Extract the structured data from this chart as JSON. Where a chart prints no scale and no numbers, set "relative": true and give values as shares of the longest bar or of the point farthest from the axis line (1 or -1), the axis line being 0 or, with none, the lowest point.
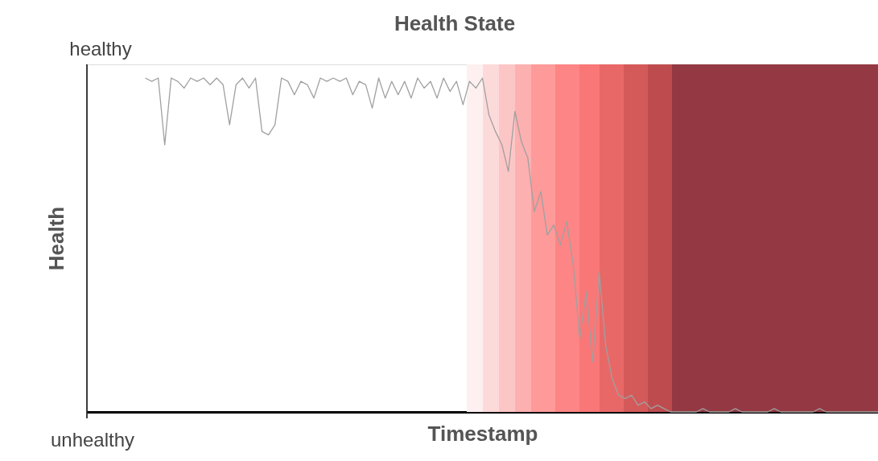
{
  "chart_data": {
    "type": "line",
    "title": "Health State",
    "xlabel": "Timestamp",
    "ylabel": "Health",
    "relative": true,
    "annotations": [
      "healthy",
      "unhealthy"
    ],
    "tick_labels": false,
    "marker": "none",
    "line_style": "solid",
    "categories": [
      null,
      null,
      null,
      null,
      null,
      null,
      null,
      null,
      null,
      null,
      null,
      null,
      null,
      null,
      null,
      null,
      null,
      null,
      null,
      null,
      null,
      null,
      null,
      null,
      null,
      null,
      null,
      null,
      null,
      null,
      null,
      null,
      null,
      null,
      null,
      null,
      null,
      null,
      null,
      null,
      null,
      null,
      null,
      null,
      null,
      null,
      null,
      null,
      null,
      null,
      null,
      null,
      null,
      null,
      null,
      null,
      null,
      null,
      null,
      null,
      null,
      null,
      null,
      null,
      null,
      null,
      null,
      null,
      null,
      null,
      null,
      null,
      null,
      null,
      null,
      null,
      null,
      null,
      null,
      null,
      null,
      null,
      null,
      null,
      null,
      null,
      null,
      null,
      null,
      null,
      null,
      null,
      null,
      null,
      null,
      null,
      null,
      null,
      null,
      null,
      null,
      null,
      null,
      null,
      null,
      null,
      null,
      null,
      null,
      null,
      null,
      null,
      null,
      null,
      null,
      null,
      null,
      null,
      null,
      null,
      null,
      null,
      null
    ],
    "series": [
      {
        "color": "#a0a0a0",
        "values": [
          null,
          null,
          null,
          null,
          null,
          null,
          null,
          null,
          null,
          1,
          0.99,
          1,
          0.8,
          1,
          0.99,
          0.97,
          1,
          0.99,
          1,
          0.98,
          1,
          0.98,
          0.86,
          0.98,
          1,
          0.97,
          1,
          0.84,
          0.83,
          0.86,
          1,
          0.99,
          0.95,
          0.99,
          0.98,
          0.94,
          1,
          0.99,
          1,
          0.99,
          1,
          0.95,
          0.99,
          0.98,
          0.91,
          1,
          0.94,
          0.99,
          0.95,
          0.99,
          0.94,
          1,
          0.97,
          0.99,
          0.94,
          1,
          0.96,
          0.99,
          0.92,
          0.99,
          0.97,
          1,
          0.89,
          0.84,
          0.8,
          0.72,
          0.9,
          0.81,
          0.76,
          0.6,
          0.66,
          0.53,
          0.56,
          0.5,
          0.57,
          0.44,
          0.22,
          0.36,
          0.15,
          0.42,
          0.2,
          0.1,
          0.05,
          0.04,
          0.05,
          0.02,
          0.03,
          0.01,
          0.02,
          0.01,
          0,
          0,
          0,
          0,
          0,
          0.01,
          0,
          0,
          0,
          0,
          0.01,
          0,
          0,
          0,
          0,
          0,
          0.01,
          0,
          0,
          0,
          0,
          0,
          0,
          0.01,
          0,
          0,
          0,
          0,
          0,
          0,
          0,
          0,
          0
        ]
      }
    ]
  }
}
